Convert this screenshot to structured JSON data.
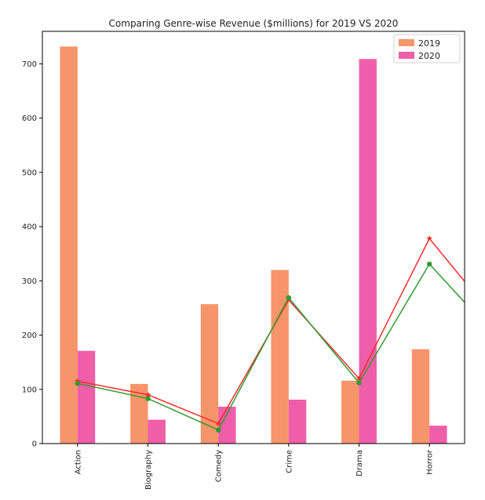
{
  "chart_data": {
    "type": "bar",
    "title": "Comparing Genre-wise Revenue ($millions) for 2019 VS 2020",
    "xlabel": "",
    "ylabel": "",
    "categories": [
      "Action",
      "Biography",
      "Comedy",
      "Crime",
      "Drama",
      "Horror"
    ],
    "yticks": [
      0,
      100,
      200,
      300,
      400,
      500,
      600,
      700
    ],
    "ylim": [
      0,
      760
    ],
    "series": [
      {
        "name": "2019",
        "type": "bar",
        "color": "#f7956a",
        "values": [
          732,
          110,
          257,
          320,
          116,
          174
        ]
      },
      {
        "name": "2020",
        "type": "bar",
        "color": "#ee5ea9",
        "values": [
          171,
          44,
          68,
          81,
          709,
          33
        ]
      }
    ],
    "overlay_lines": [
      {
        "type": "line",
        "color": "#ff2a2a",
        "marker": "star",
        "values": [
          115,
          90,
          37,
          265,
          120,
          378,
          220
        ]
      },
      {
        "type": "line",
        "color": "#2e9b2e",
        "marker": "circle",
        "values": [
          111,
          83,
          25,
          269,
          112,
          331,
          190
        ]
      }
    ],
    "legend": {
      "placement": "top-right"
    },
    "grid": false
  }
}
